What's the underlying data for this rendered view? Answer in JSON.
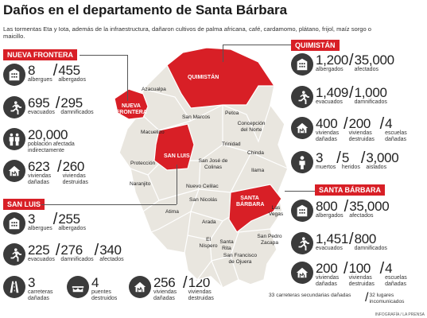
{
  "title": "Daños en el departamento de Santa Bárbara",
  "subtitle": "Las tormentas Eta y Iota, además de la infraestructura, dañaron cultivos de palma africana, café, cardamomo, plátano, frijol, maíz sorgo o maicillo.",
  "colors": {
    "accent": "#d81f26",
    "icon_bg": "#3b3b3b",
    "map_fill": "#e9e6df",
    "map_highlight": "#d81f26"
  },
  "nueva_frontera": {
    "banner": "NUEVA FRONTERA",
    "albergues_num": "8",
    "albergues_lbl": "albergues",
    "albergados_num": "455",
    "albergados_lbl": "albergados",
    "evacuados_num": "695",
    "evacuados_lbl": "evacuados",
    "damnificados_num": "295",
    "damnificados_lbl": "damnificados",
    "poblacion_num": "20,000",
    "poblacion_lbl": "población afectada indirectamente",
    "viv_danadas_num": "623",
    "viv_danadas_lbl": "viviendas dañadas",
    "viv_destruidas_num": "260",
    "viv_destruidas_lbl": "viviendas destruidas"
  },
  "san_luis": {
    "banner": "SAN LUIS",
    "albergues_num": "3",
    "albergues_lbl": "albergues",
    "albergados_num": "255",
    "albergados_lbl": "albergados",
    "evacuados_num": "225",
    "evacuados_lbl": "evacuados",
    "damnificados_num": "276",
    "damnificados_lbl": "damnificados",
    "afectados_num": "340",
    "afectados_lbl": "afectados",
    "carreteras_num": "3",
    "carreteras_lbl": "carreteras dañadas",
    "puentes_num": "4",
    "puentes_lbl": "puentes destruidos",
    "viv_danadas_num": "256",
    "viv_danadas_lbl": "viviendas dañadas",
    "viv_destruidas_num": "120",
    "viv_destruidas_lbl": "viviendas destruidas"
  },
  "quimistan": {
    "banner": "QUIMISTÁN",
    "albergues_num": "1,200",
    "albergues_lbl": "albergados",
    "afectados_num": "35,000",
    "afectados_lbl": "afectados",
    "evacuados_num": "1,409",
    "evacuados_lbl": "evacuados",
    "damnificados_num": "1,000",
    "damnificados_lbl": "damnificados",
    "viv_danadas_num": "400",
    "viv_danadas_lbl": "viviendas dañadas",
    "viv_destruidas_num": "200",
    "viv_destruidas_lbl": "viviendas destruidas",
    "escuelas_num": "4",
    "escuelas_lbl": "escuelas dañadas",
    "muertos_num": "3",
    "muertos_lbl": "muertos",
    "heridos_num": "5",
    "heridos_lbl": "heridos",
    "aislados_num": "3,000",
    "aislados_lbl": "aislados"
  },
  "santa_barbara": {
    "banner": "SANTA BÁRBARA",
    "albergados_num": "800",
    "albergados_lbl": "albergados",
    "afectados_num": "35,000",
    "afectados_lbl": "afectados",
    "evacuados_num": "1,451",
    "evacuados_lbl": "evacuados",
    "damnificados_num": "800",
    "damnificados_lbl": "damnificados",
    "viv_danadas_num": "200",
    "viv_danadas_lbl": "viviendas dañadas",
    "viv_destruidas_num": "100",
    "viv_destruidas_lbl": "viviendas destruidas",
    "escuelas_num": "4",
    "escuelas_lbl": "escuelas dañadas",
    "carreteras_num": "33",
    "carreteras_lbl": "carreteras secundarias dañadas",
    "lugares_num": "32",
    "lugares_lbl": "lugares incomunicados"
  },
  "map_labels": {
    "quimistan": "QUIMISTÁN",
    "nueva_frontera": "NUEVA FRONTERA",
    "san_luis": "SAN LUIS",
    "santa_barbara": "SANTA BÁRBARA",
    "azacualpa": "Azacualpa",
    "macuelizo": "Macuelizo",
    "san_marcos": "San Marcos",
    "petoa": "Petoa",
    "concepcion_norte": "Concepción del Norte",
    "trinidad": "Trinidad",
    "chinda": "Chinda",
    "proteccion": "Protección",
    "san_jose_colinas": "San José de Colinas",
    "ilama": "Ilama",
    "naranjito": "Naranjito",
    "nuevo_celilac": "Nuevo Celilac",
    "atima": "Atima",
    "san_nicolas": "San Nicolás",
    "arada": "Arada",
    "las_vegas": "Las Vegas",
    "el_nispero": "El Níspero",
    "santa_rita": "Santa Rita",
    "san_pedro_zacapa": "San Pedro Zacapa",
    "san_francisco_ojuera": "San Francisco de Ojuera"
  },
  "credit": "INFOGRAFÍA / LA PRENSA"
}
